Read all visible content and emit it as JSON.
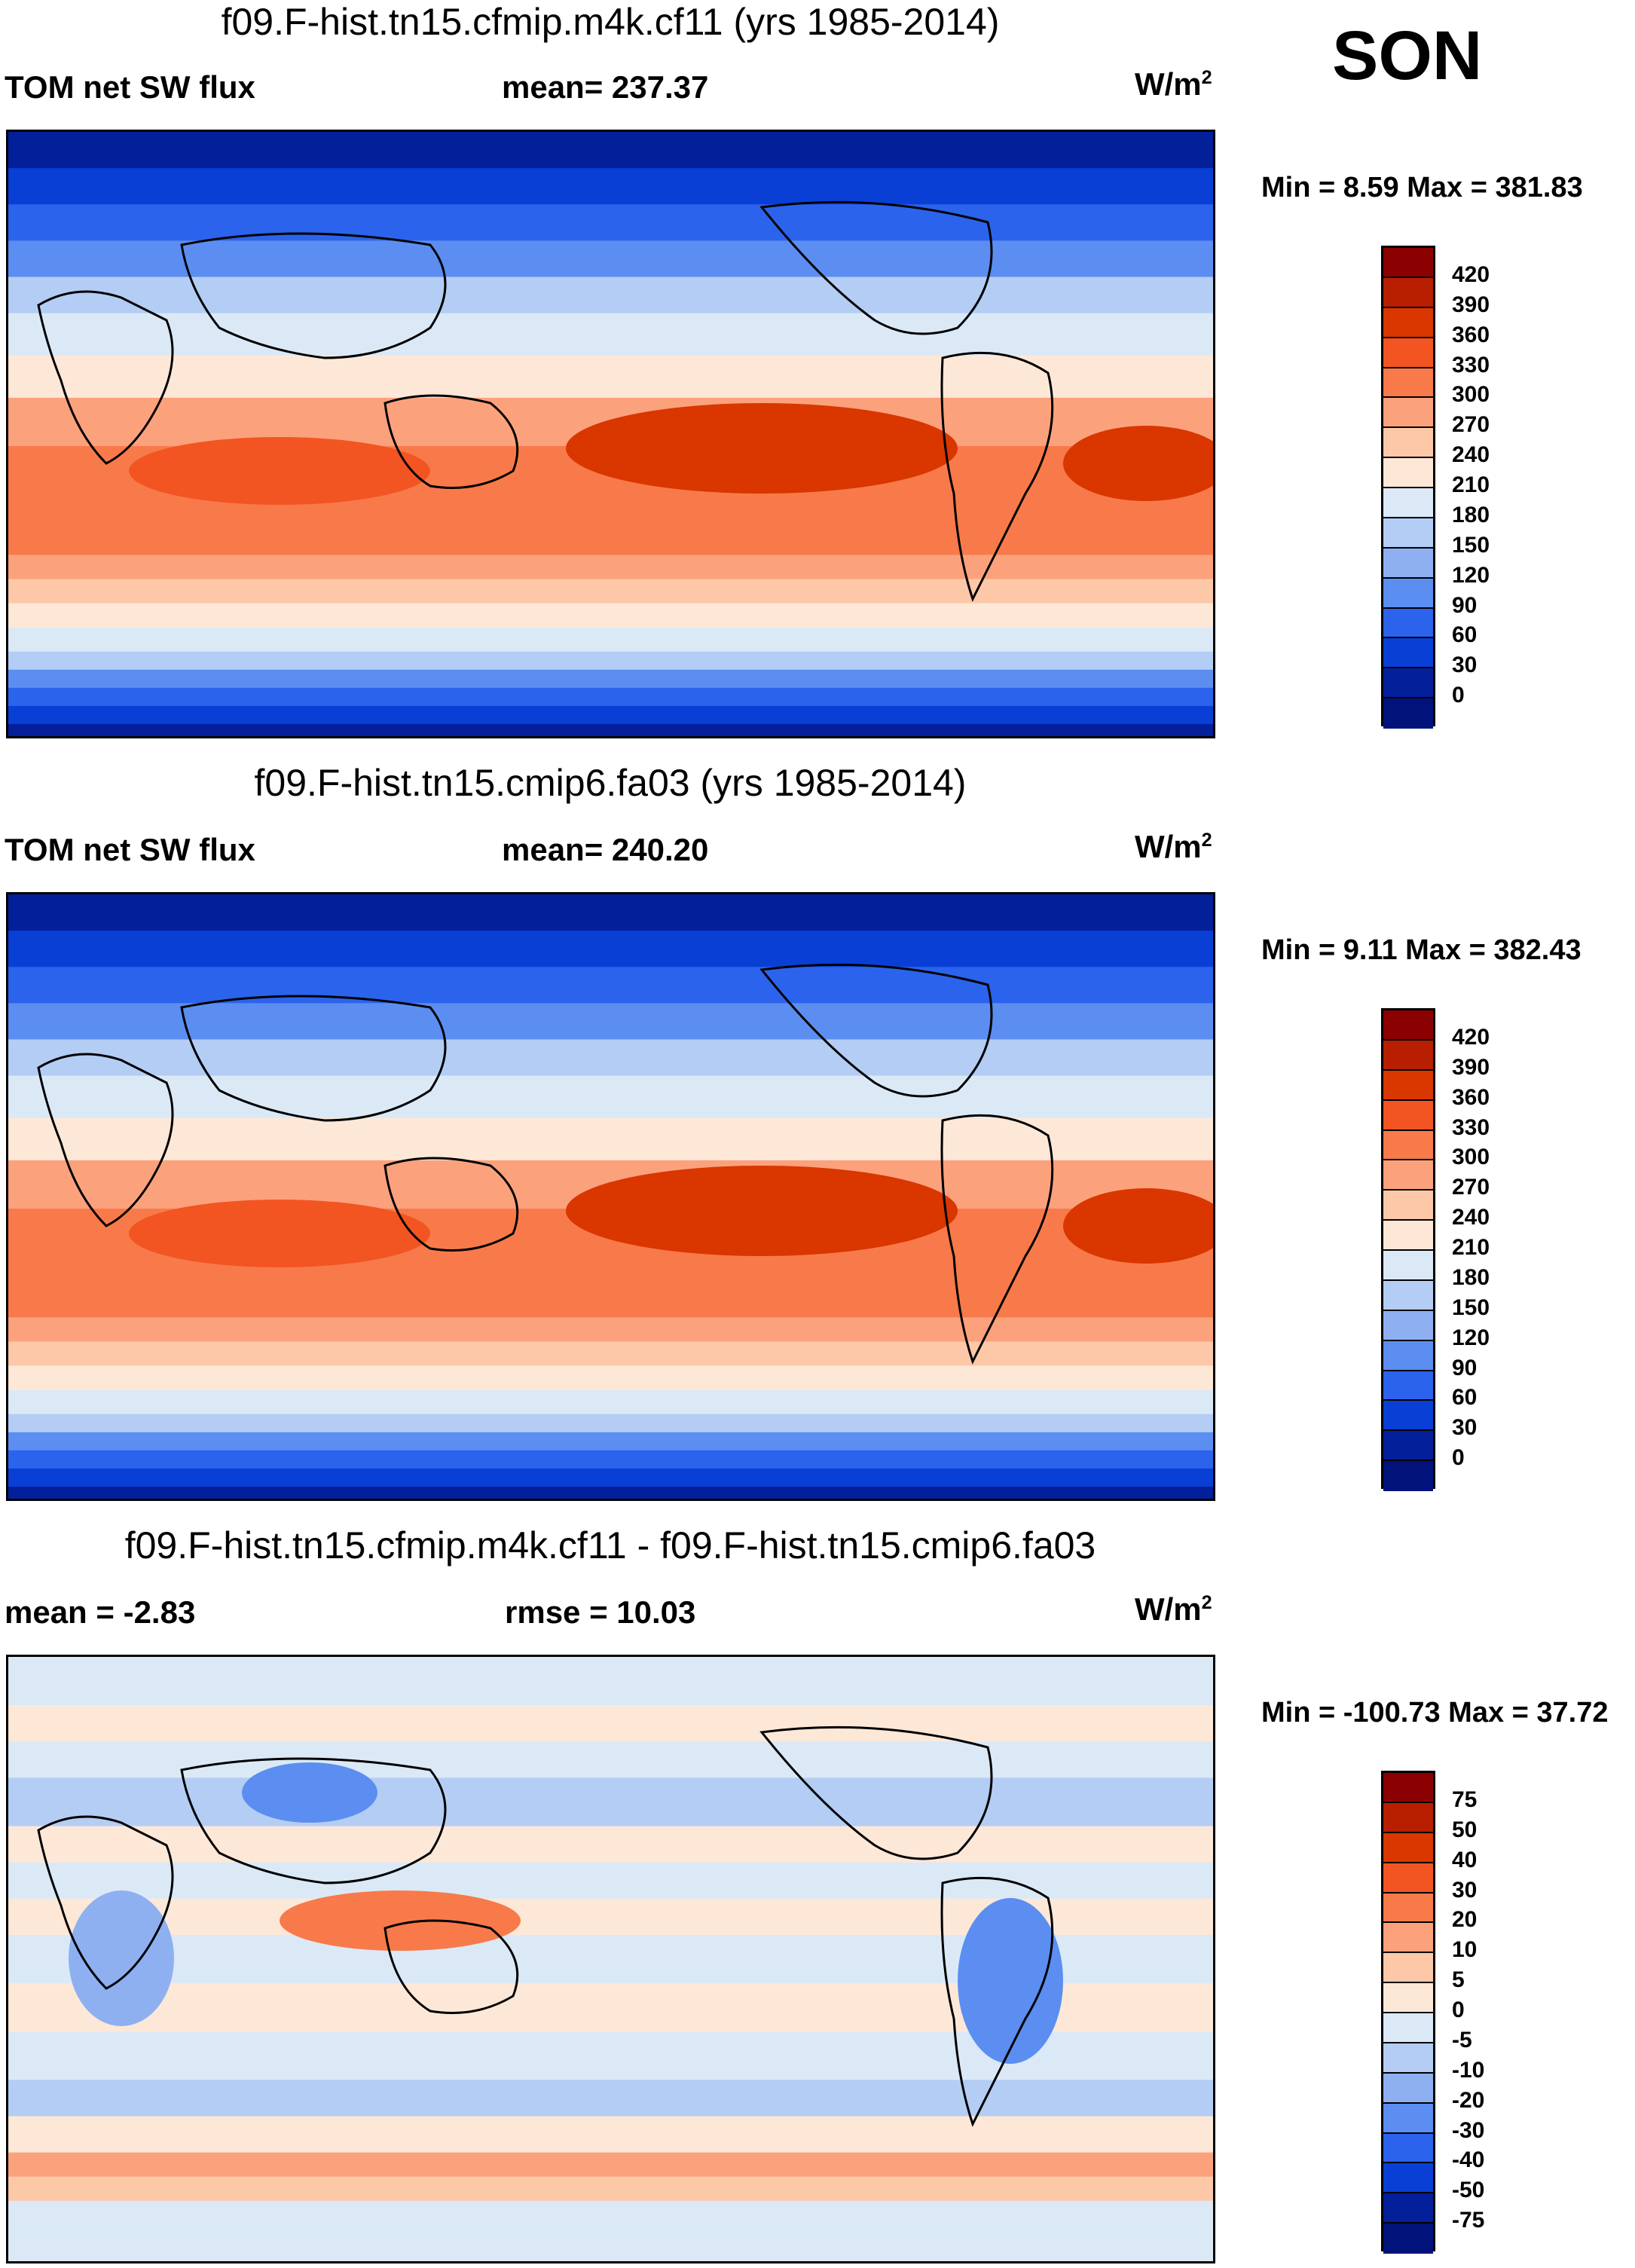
{
  "season": "SON",
  "units_base": "W/m",
  "units_sup": "2",
  "panels": [
    {
      "title": "f09.F-hist.tn15.cfmip.m4k.cf11 (yrs 1985-2014)",
      "left_label": "TOM net SW flux",
      "center_label": "mean= 237.37",
      "minmax": "Min =   8.59 Max = 381.83",
      "kind": "abs"
    },
    {
      "title": "f09.F-hist.tn15.cmip6.fa03 (yrs 1985-2014)",
      "left_label": "TOM net SW flux",
      "center_label": "mean= 240.20",
      "minmax": "Min =   9.11 Max = 382.43",
      "kind": "abs"
    },
    {
      "title": "f09.F-hist.tn15.cfmip.m4k.cf11 - f09.F-hist.tn15.cmip6.fa03",
      "left_label": "mean =  -2.83",
      "center_label": "rmse =  10.03",
      "minmax": "Min = -100.73 Max =  37.72",
      "kind": "diff"
    }
  ],
  "chart_data": [
    {
      "type": "heatmap",
      "title": "f09.F-hist.tn15.cfmip.m4k.cf11 (yrs 1985-2014)",
      "variable": "TOM net SW flux",
      "mean": 237.37,
      "min": 8.59,
      "max": 381.83,
      "units": "W/m2",
      "levels": [
        420,
        390,
        360,
        330,
        300,
        270,
        240,
        210,
        180,
        150,
        120,
        90,
        60,
        30,
        0
      ],
      "colors": [
        "#8b0000",
        "#b81e00",
        "#d93600",
        "#f25522",
        "#f87a4a",
        "#fba27d",
        "#fdc8a8",
        "#fde8d8",
        "#dbe9f7",
        "#b4cdf4",
        "#8eb0f1",
        "#5b8ef0",
        "#2c63ec",
        "#0a3fd6",
        "#031f9a",
        "#01137a"
      ]
    },
    {
      "type": "heatmap",
      "title": "f09.F-hist.tn15.cmip6.fa03 (yrs 1985-2014)",
      "variable": "TOM net SW flux",
      "mean": 240.2,
      "min": 9.11,
      "max": 382.43,
      "units": "W/m2",
      "levels": [
        420,
        390,
        360,
        330,
        300,
        270,
        240,
        210,
        180,
        150,
        120,
        90,
        60,
        30,
        0
      ],
      "colors": [
        "#8b0000",
        "#b81e00",
        "#d93600",
        "#f25522",
        "#f87a4a",
        "#fba27d",
        "#fdc8a8",
        "#fde8d8",
        "#dbe9f7",
        "#b4cdf4",
        "#8eb0f1",
        "#5b8ef0",
        "#2c63ec",
        "#0a3fd6",
        "#031f9a",
        "#01137a"
      ]
    },
    {
      "type": "heatmap",
      "title": "f09.F-hist.tn15.cfmip.m4k.cf11 - f09.F-hist.tn15.cmip6.fa03",
      "mean": -2.83,
      "rmse": 10.03,
      "min": -100.73,
      "max": 37.72,
      "units": "W/m2",
      "levels": [
        75,
        50,
        40,
        30,
        20,
        10,
        5,
        0,
        -5,
        -10,
        -20,
        -30,
        -40,
        -50,
        -75
      ],
      "colors": [
        "#8b0000",
        "#b81e00",
        "#d93600",
        "#f25522",
        "#f87a4a",
        "#fba27d",
        "#fdc8a8",
        "#fde8d8",
        "#dbe9f7",
        "#b4cdf4",
        "#8eb0f1",
        "#5b8ef0",
        "#2c63ec",
        "#0a3fd6",
        "#031f9a",
        "#01137a"
      ]
    }
  ]
}
